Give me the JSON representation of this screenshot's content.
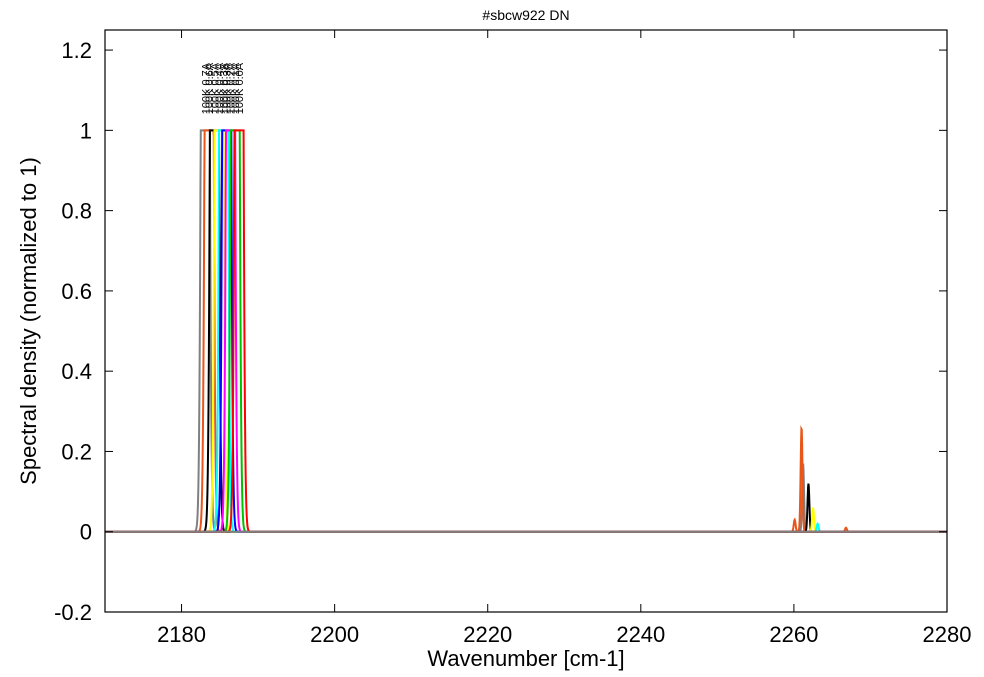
{
  "chart_data": {
    "type": "line",
    "title": "#sbcw922 DN",
    "xlabel": "Wavenumber [cm-1]",
    "ylabel": "Spectral density (normalized to 1)",
    "xlim": [
      2170,
      2280
    ],
    "ylim": [
      -0.2,
      1.25
    ],
    "x_ticks": [
      2180,
      2200,
      2220,
      2240,
      2260,
      2280
    ],
    "x_tick_labels": [
      "2180",
      "2200",
      "2220",
      "2240",
      "2260",
      "2280"
    ],
    "y_ticks": [
      -0.2,
      0,
      0.2,
      0.4,
      0.6,
      0.8,
      1,
      1.2
    ],
    "y_tick_labels": [
      "-0.2",
      "0",
      "0.2",
      "0.4",
      "0.6",
      "0.8",
      "1",
      "1.2"
    ],
    "grid": false,
    "series": [
      {
        "color": "#808080",
        "main_peak": 2183.1,
        "label": "100K 0.7A",
        "secondary": [
          {
            "x": 2261.2,
            "y": 0.17
          }
        ]
      },
      {
        "color": "#e8561a",
        "main_peak": 2183.6,
        "label": "100K 0.6A",
        "secondary": [
          {
            "x": 2260.1,
            "y": 0.03
          },
          {
            "x": 2261.0,
            "y": 0.26
          },
          {
            "x": 2266.8,
            "y": 0.01
          }
        ]
      },
      {
        "color": "#000000",
        "main_peak": 2184.3,
        "label": "100K 0.5A",
        "secondary": [
          {
            "x": 2261.9,
            "y": 0.12
          }
        ]
      },
      {
        "color": "#ffff00",
        "main_peak": 2184.9,
        "label": "100K 0.4A",
        "secondary": [
          {
            "x": 2262.5,
            "y": 0.06
          }
        ]
      },
      {
        "color": "#00ffff",
        "main_peak": 2185.5,
        "label": "100K 0.3A",
        "secondary": [
          {
            "x": 2263.1,
            "y": 0.02
          }
        ]
      },
      {
        "color": "#0000ff",
        "main_peak": 2185.9,
        "label": "100K 0.3A",
        "secondary": []
      },
      {
        "color": "#ff00ff",
        "main_peak": 2186.4,
        "label": "100K 0.2A",
        "secondary": []
      },
      {
        "color": "#00c000",
        "main_peak": 2187.0,
        "label": "100K 0.1A",
        "secondary": []
      },
      {
        "color": "#ff0000",
        "main_peak": 2187.5,
        "label": "100K 0.0A",
        "secondary": []
      }
    ]
  }
}
